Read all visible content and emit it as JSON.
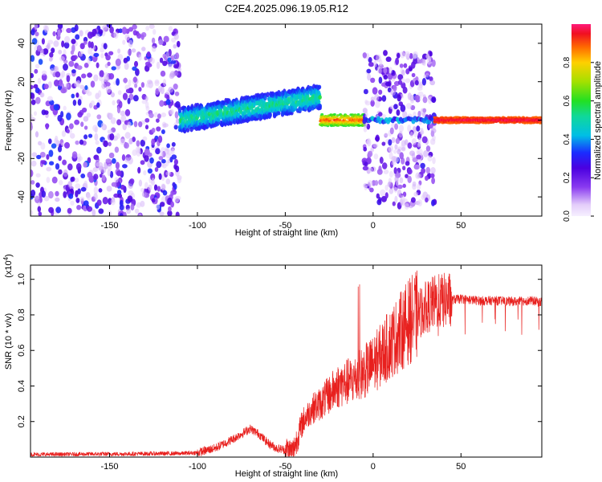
{
  "title": "C2E4.2025.096.19.05.R12",
  "chart_data": [
    {
      "type": "heatmap",
      "xlabel": "Height of straight line (km)",
      "ylabel": "Frequency (Hz)",
      "xlim": [
        -195,
        96
      ],
      "ylim": [
        -50,
        50
      ],
      "xticks": [
        -150,
        -100,
        -50,
        0,
        50
      ],
      "yticks": [
        -40,
        -20,
        0,
        20,
        40
      ],
      "grid": false,
      "colorbar": {
        "label": "Normalized spectral amplitude",
        "range": [
          0,
          1
        ],
        "ticks": [
          0.0,
          0.2,
          0.4,
          0.6,
          0.8
        ]
      },
      "regions": [
        {
          "x": [
            -195,
            -110
          ],
          "freq": [
            -50,
            50
          ],
          "amplitude": [
            0.05,
            0.35
          ],
          "pattern": "broadband noise"
        },
        {
          "x": [
            -110,
            -30
          ],
          "freq_center_start": 0,
          "freq_center_end": 12,
          "spread": 6,
          "amplitude": [
            0.3,
            0.6
          ],
          "pattern": "rising band"
        },
        {
          "x": [
            -30,
            -5
          ],
          "freq_center": 0,
          "spread": 3,
          "amplitude": [
            0.5,
            0.95
          ],
          "pattern": "narrow band"
        },
        {
          "x": [
            -5,
            35
          ],
          "freq": [
            -45,
            35
          ],
          "amplitude": [
            0.05,
            0.3
          ],
          "pattern": "broadband noise with line at 0 Hz"
        },
        {
          "x": [
            35,
            96
          ],
          "freq_center": 0,
          "spread": 1.5,
          "amplitude": [
            0.85,
            1.0
          ],
          "pattern": "steady tone"
        }
      ]
    },
    {
      "type": "line",
      "xlabel": "Height of straight line (km)",
      "ylabel": "SNR (10 * v/v)",
      "y_multiplier": "(x10",
      "y_multiplier_exp": "4",
      "y_multiplier_close": ")",
      "xlim": [
        -195,
        96
      ],
      "ylim": [
        0,
        1.08
      ],
      "xticks": [
        -150,
        -100,
        -50,
        0,
        50
      ],
      "yticks": [
        0.2,
        0.4,
        0.6,
        0.8,
        1.0
      ],
      "grid": false,
      "series": [
        {
          "color": "#e8201e",
          "x": [
            -195,
            -180,
            -160,
            -140,
            -120,
            -110,
            -100,
            -90,
            -80,
            -75,
            -70,
            -65,
            -60,
            -55,
            -50,
            -46,
            -45,
            -40,
            -35,
            -30,
            -25,
            -20,
            -15,
            -10,
            -5,
            0,
            5,
            10,
            15,
            20,
            25,
            30,
            35,
            40,
            50,
            60,
            70,
            80,
            90,
            96
          ],
          "y": [
            0.015,
            0.015,
            0.017,
            0.018,
            0.02,
            0.02,
            0.025,
            0.05,
            0.1,
            0.13,
            0.16,
            0.13,
            0.08,
            0.05,
            0.04,
            0.03,
            0.05,
            0.2,
            0.27,
            0.3,
            0.35,
            0.4,
            0.42,
            0.44,
            0.48,
            0.52,
            0.58,
            0.64,
            0.7,
            0.76,
            0.8,
            0.84,
            0.87,
            0.88,
            0.89,
            0.88,
            0.88,
            0.875,
            0.88,
            0.87
          ]
        }
      ]
    }
  ]
}
